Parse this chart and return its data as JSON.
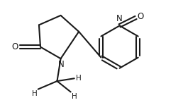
{
  "bg_color": "#ffffff",
  "line_color": "#1a1a1a",
  "line_width": 1.5,
  "font_size": 7.5,
  "figsize": [
    2.58,
    1.49
  ],
  "dpi": 100,
  "xlim": [
    0,
    10
  ],
  "ylim": [
    0,
    5.78
  ]
}
